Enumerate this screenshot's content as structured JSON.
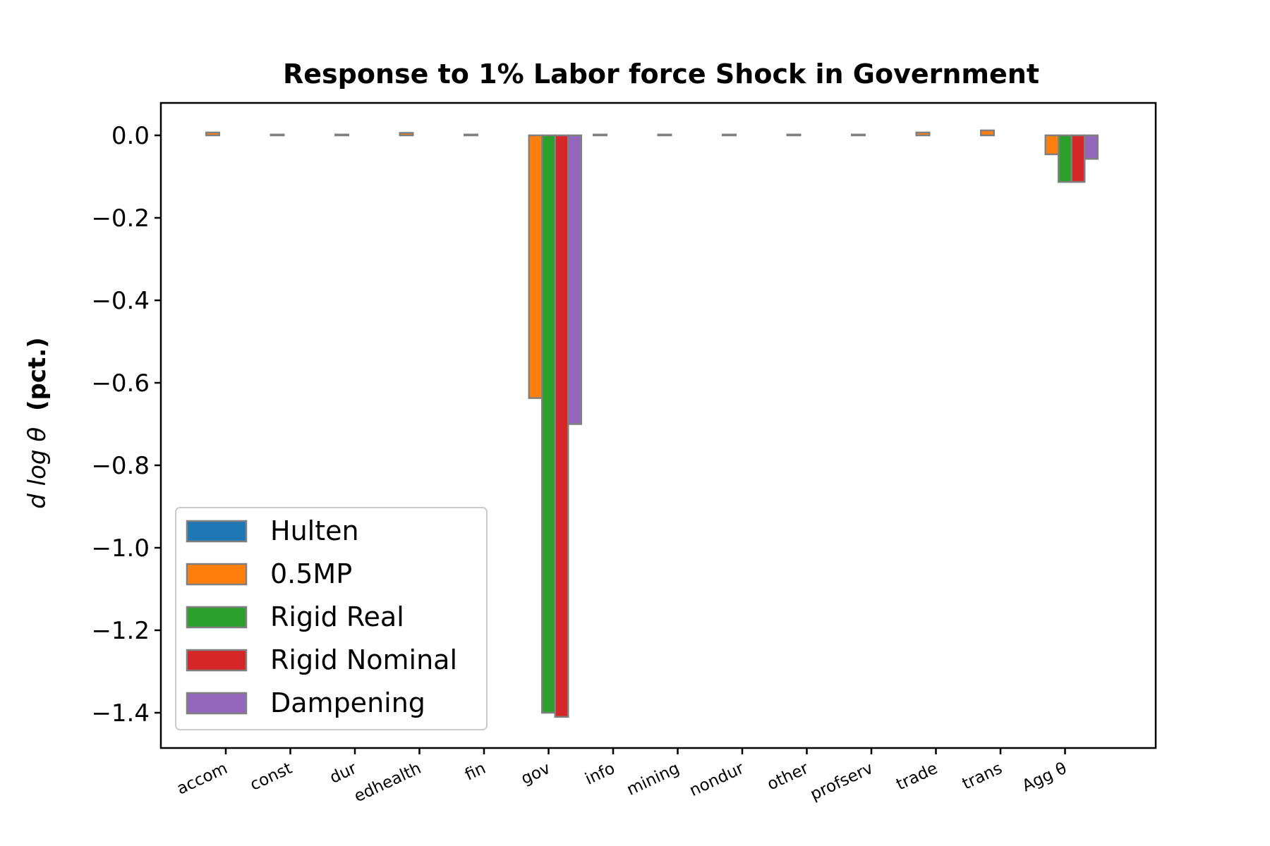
{
  "chart_data": {
    "type": "bar",
    "title": "Response to 1% Labor force Shock in Government",
    "ylabel_math": "d log θ",
    "ylabel_unit": "(pct.)",
    "xlabel": "",
    "ylim": [
      -1.48,
      0.08
    ],
    "yticks": [
      0.0,
      -0.2,
      -0.4,
      -0.6,
      -0.8,
      -1.0,
      -1.2,
      -1.4
    ],
    "ytick_labels": [
      "0.0",
      "−0.2",
      "−0.4",
      "−0.6",
      "−0.8",
      "−1.0",
      "−1.2",
      "−1.4"
    ],
    "grid": false,
    "legend_position": "lower-left",
    "edge_color": "#808080",
    "categories": [
      "accom",
      "const",
      "dur",
      "edhealth",
      "fin",
      "gov",
      "info",
      "mining",
      "nondur",
      "other",
      "profserv",
      "trade",
      "trans",
      "Agg θ"
    ],
    "series": [
      {
        "name": "Hulten",
        "color": "#1f77b4",
        "values": [
          0,
          0,
          0,
          0,
          0,
          0,
          0,
          0,
          0,
          0,
          0,
          0,
          0,
          0
        ]
      },
      {
        "name": "0.5MP",
        "color": "#ff7f0e",
        "values": [
          0.007,
          0.002,
          0.002,
          0.006,
          0.002,
          -0.637,
          0.002,
          0.002,
          0.002,
          0.002,
          0.002,
          0.007,
          0.012,
          -0.046
        ]
      },
      {
        "name": "Rigid Real",
        "color": "#2ca02c",
        "values": [
          0,
          0,
          0,
          0,
          0,
          -1.4,
          0,
          0,
          0,
          0,
          0,
          0,
          0,
          -0.113
        ]
      },
      {
        "name": "Rigid Nominal",
        "color": "#d62728",
        "values": [
          0,
          0,
          0,
          0,
          0,
          -1.41,
          0,
          0,
          0,
          0,
          0,
          0,
          0,
          -0.113
        ]
      },
      {
        "name": "Dampening",
        "color": "#9467bd",
        "values": [
          0,
          0,
          0,
          0,
          0,
          -0.7,
          0,
          0,
          0,
          0,
          0,
          0,
          0,
          -0.057
        ]
      }
    ]
  }
}
